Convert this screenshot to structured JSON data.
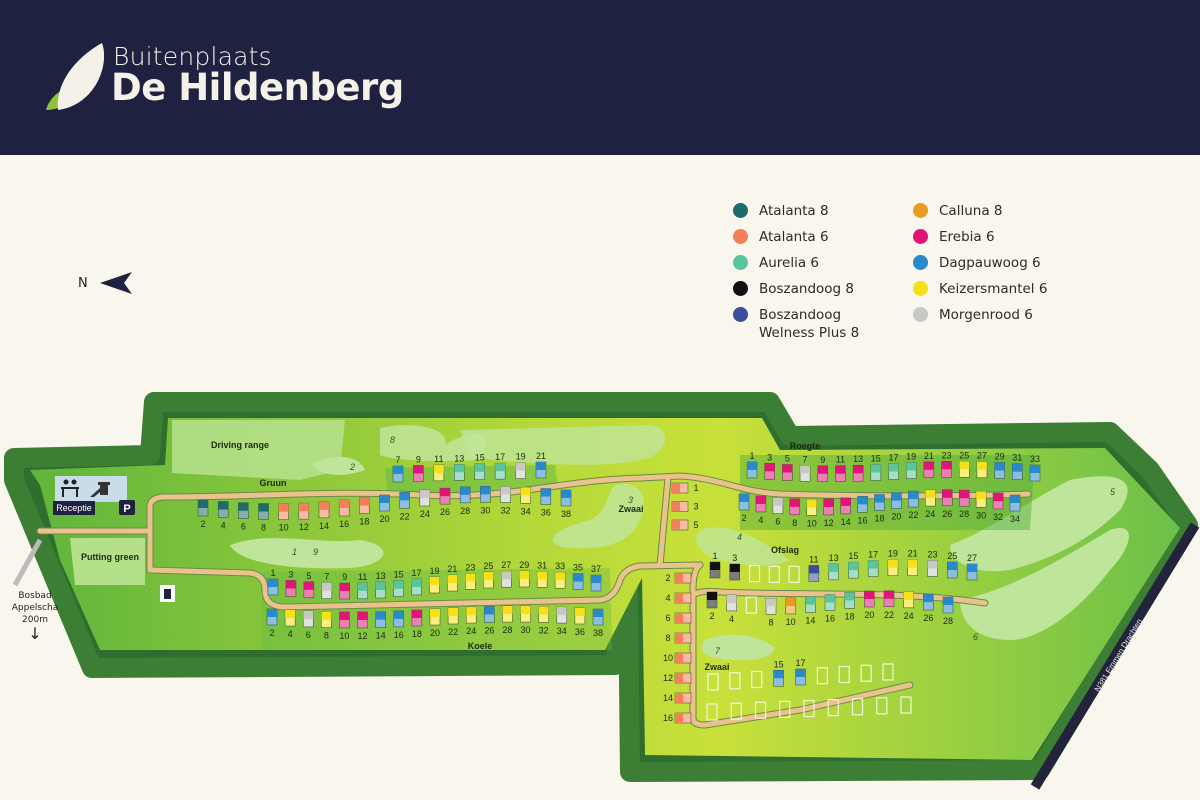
{
  "header": {
    "brand_top": "Buitenplaats",
    "brand_main": "De Hildenberg",
    "background": "#1f2140"
  },
  "compass": {
    "label": "N",
    "icon": "arrow-left-icon"
  },
  "legend": [
    {
      "label": "Atalanta 8",
      "code": "A8",
      "color": "#1f6a6a"
    },
    {
      "label": "Calluna 8",
      "code": "C8",
      "color": "#e89a22"
    },
    {
      "label": "Atalanta 6",
      "code": "A6",
      "color": "#f47f5a"
    },
    {
      "label": "Erebia 6",
      "code": "E6",
      "color": "#e0157a"
    },
    {
      "label": "Aurelia 6",
      "code": "AU",
      "color": "#5cc49c"
    },
    {
      "label": "Dagpauwoog 6",
      "code": "D6",
      "color": "#2a88cc"
    },
    {
      "label": "Boszandoog 8",
      "code": "B8",
      "color": "#111111"
    },
    {
      "label": "Keizersmantel 6",
      "code": "K6",
      "color": "#f5e01a"
    },
    {
      "label": "Boszandoog Welness Plus 8",
      "code": "BW",
      "color": "#3a4d9e"
    },
    {
      "label": "Morgenrood 6",
      "code": "M6",
      "color": "#c8c8c4"
    }
  ],
  "areas": {
    "driving_range": "Driving range",
    "putting_green": "Putting green",
    "gruun": "Gruun",
    "koele": "Koele",
    "roegte": "Roegte",
    "zwaai_top": "Zwaai",
    "ofslag": "Ofslag",
    "zwaai_bottom": "Zwaai",
    "reception": "Receptie",
    "parking": "P",
    "road": "N381 Emmen Drachten",
    "bosbad": [
      "Bosbad",
      "Appelscha",
      "200m"
    ],
    "bosbad_arrow": "↓"
  },
  "holes": [
    "1",
    "2",
    "3",
    "4",
    "5",
    "6",
    "7",
    "8",
    "9"
  ],
  "lodge_rows": {
    "gruun_north": [
      [
        "7",
        "D6"
      ],
      [
        "9",
        "E6"
      ],
      [
        "11",
        "K6"
      ],
      [
        "13",
        "AU"
      ],
      [
        "15",
        "AU"
      ],
      [
        "17",
        "AU"
      ],
      [
        "19",
        "M6"
      ],
      [
        "21",
        "D6"
      ]
    ],
    "gruun_south": [
      [
        "2",
        "A8"
      ],
      [
        "4",
        "A8"
      ],
      [
        "6",
        "A8"
      ],
      [
        "8",
        "A8"
      ],
      [
        "10",
        "A6"
      ],
      [
        "12",
        "A6"
      ],
      [
        "14",
        "A6"
      ],
      [
        "16",
        "A6"
      ],
      [
        "18",
        "A6"
      ],
      [
        "20",
        "D6"
      ],
      [
        "22",
        "D6"
      ],
      [
        "24",
        "M6"
      ],
      [
        "26",
        "E6"
      ],
      [
        "28",
        "D6"
      ],
      [
        "30",
        "D6"
      ],
      [
        "32",
        "M6"
      ],
      [
        "34",
        "K6"
      ],
      [
        "36",
        "D6"
      ],
      [
        "38",
        "D6"
      ]
    ],
    "koele_north": [
      [
        "1",
        "D6"
      ],
      [
        "3",
        "E6"
      ],
      [
        "5",
        "E6"
      ],
      [
        "7",
        "M6"
      ],
      [
        "9",
        "E6"
      ],
      [
        "11",
        "AU"
      ],
      [
        "13",
        "AU"
      ],
      [
        "15",
        "AU"
      ],
      [
        "17",
        "AU"
      ],
      [
        "19",
        "K6"
      ],
      [
        "21",
        "K6"
      ],
      [
        "23",
        "K6"
      ],
      [
        "25",
        "K6"
      ],
      [
        "27",
        "M6"
      ],
      [
        "29",
        "K6"
      ],
      [
        "31",
        "K6"
      ],
      [
        "33",
        "K6"
      ],
      [
        "35",
        "D6"
      ],
      [
        "37",
        "D6"
      ]
    ],
    "koele_south": [
      [
        "2",
        "D6"
      ],
      [
        "4",
        "K6"
      ],
      [
        "6",
        "M6"
      ],
      [
        "8",
        "K6"
      ],
      [
        "10",
        "E6"
      ],
      [
        "12",
        "E6"
      ],
      [
        "14",
        "D6"
      ],
      [
        "16",
        "D6"
      ],
      [
        "18",
        "E6"
      ],
      [
        "20",
        "K6"
      ],
      [
        "22",
        "K6"
      ],
      [
        "24",
        "K6"
      ],
      [
        "26",
        "D6"
      ],
      [
        "28",
        "K6"
      ],
      [
        "30",
        "K6"
      ],
      [
        "32",
        "K6"
      ],
      [
        "34",
        "M6"
      ],
      [
        "36",
        "K6"
      ],
      [
        "38",
        "D6"
      ]
    ],
    "roegte_north": [
      [
        "1",
        "D6"
      ],
      [
        "3",
        "E6"
      ],
      [
        "5",
        "E6"
      ],
      [
        "7",
        "M6"
      ],
      [
        "9",
        "E6"
      ],
      [
        "11",
        "E6"
      ],
      [
        "13",
        "E6"
      ],
      [
        "15",
        "AU"
      ],
      [
        "17",
        "AU"
      ],
      [
        "19",
        "AU"
      ],
      [
        "21",
        "E6"
      ],
      [
        "23",
        "E6"
      ],
      [
        "25",
        "K6"
      ],
      [
        "27",
        "K6"
      ],
      [
        "29",
        "D6"
      ],
      [
        "31",
        "D6"
      ],
      [
        "33",
        "D6"
      ]
    ],
    "roegte_south": [
      [
        "2",
        "D6"
      ],
      [
        "4",
        "E6"
      ],
      [
        "6",
        "M6"
      ],
      [
        "8",
        "E6"
      ],
      [
        "10",
        "K6"
      ],
      [
        "12",
        "E6"
      ],
      [
        "14",
        "E6"
      ],
      [
        "16",
        "D6"
      ],
      [
        "18",
        "D6"
      ],
      [
        "20",
        "D6"
      ],
      [
        "22",
        "D6"
      ],
      [
        "24",
        "K6"
      ],
      [
        "26",
        "E6"
      ],
      [
        "28",
        "E6"
      ],
      [
        "30",
        "K6"
      ],
      [
        "32",
        "E6"
      ],
      [
        "34",
        "D6"
      ]
    ],
    "zwaai_top": [
      [
        "1",
        "A6"
      ],
      [
        "3",
        "A6"
      ],
      [
        "5",
        "A6"
      ]
    ],
    "ofslag_north": [
      [
        "1",
        "B8"
      ],
      [
        "3",
        "B8"
      ],
      [
        "",
        ""
      ],
      [
        "",
        ""
      ],
      [
        "",
        ""
      ],
      [
        "11",
        "BW"
      ],
      [
        "13",
        "AU"
      ],
      [
        "15",
        "AU"
      ],
      [
        "17",
        "AU"
      ],
      [
        "19",
        "K6"
      ],
      [
        "21",
        "K6"
      ],
      [
        "23",
        "M6"
      ],
      [
        "25",
        "D6"
      ],
      [
        "27",
        "D6"
      ]
    ],
    "ofslag_south": [
      [
        "2",
        "B8"
      ],
      [
        "4",
        "M6"
      ],
      [
        "",
        ""
      ],
      [
        "8",
        "M6"
      ],
      [
        "10",
        "C8"
      ],
      [
        "14",
        "AU"
      ],
      [
        "16",
        "AU"
      ],
      [
        "18",
        "AU"
      ],
      [
        "20",
        "E6"
      ],
      [
        "22",
        "E6"
      ],
      [
        "24",
        "K6"
      ],
      [
        "26",
        "D6"
      ],
      [
        "28",
        "D6"
      ]
    ],
    "west_column": [
      [
        "2",
        "A6"
      ],
      [
        "4",
        "A6"
      ],
      [
        "6",
        "A6"
      ],
      [
        "8",
        "A6"
      ],
      [
        "10",
        "A6"
      ],
      [
        "12",
        "A6"
      ],
      [
        "14",
        "A6"
      ],
      [
        "16",
        "A6"
      ]
    ],
    "zwaai_north": [
      [
        "",
        ""
      ],
      [
        "",
        ""
      ],
      [
        "",
        ""
      ],
      [
        "15",
        "D6"
      ],
      [
        "17",
        "D6"
      ],
      [
        "",
        ""
      ],
      [
        "",
        ""
      ],
      [
        "",
        ""
      ],
      [
        "",
        ""
      ]
    ],
    "zwaai_south": [
      [
        "",
        ""
      ],
      [
        "",
        ""
      ],
      [
        "",
        ""
      ],
      [
        "",
        ""
      ],
      [
        "",
        ""
      ],
      [
        "",
        ""
      ],
      [
        "",
        ""
      ],
      [
        "",
        ""
      ],
      [
        "",
        ""
      ]
    ]
  }
}
